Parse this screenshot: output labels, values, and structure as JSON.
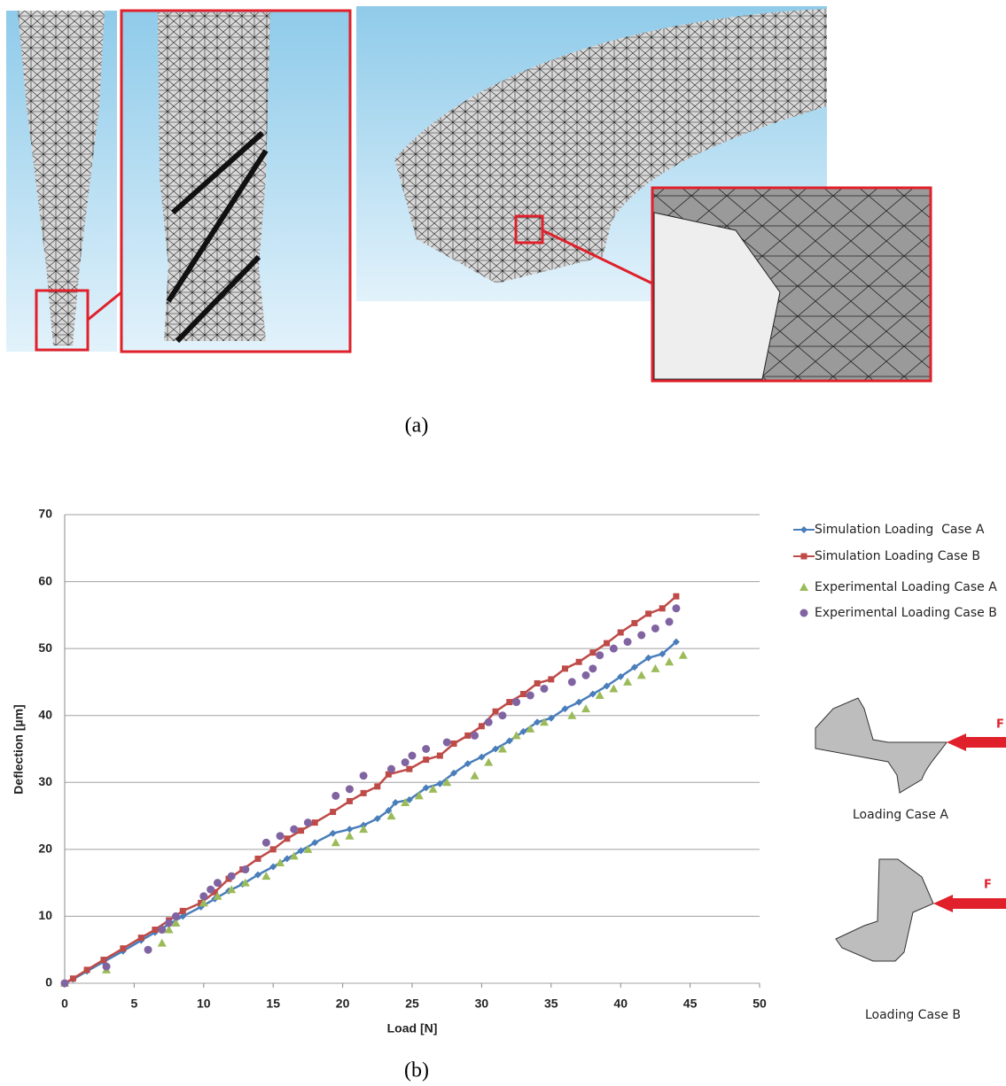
{
  "figure": {
    "caption_a": "(a)",
    "caption_b": "(b)",
    "case_a_label": "Loading Case A",
    "case_b_label": "Loading Case B",
    "force_a": "F",
    "force_b": "F"
  },
  "chart_data": {
    "type": "line",
    "x_label": "Load [N]",
    "y_label": "Deflection [µm]",
    "xlim": [
      0,
      50
    ],
    "xticks": [
      0,
      5,
      10,
      15,
      20,
      25,
      30,
      35,
      40,
      45,
      50
    ],
    "ylim": [
      0,
      70
    ],
    "yticks": [
      0,
      10,
      20,
      30,
      40,
      50,
      60,
      70
    ],
    "grid": true,
    "legend": "right",
    "series": [
      {
        "name": "Simulation Loading  Case A",
        "color": "#4a7ebb",
        "marker": "diamond",
        "line": true,
        "x": [
          0,
          0.6,
          1.6,
          2.8,
          4.2,
          5.5,
          6.5,
          7.5,
          8.5,
          9.8,
          10.8,
          11.8,
          12.8,
          13.9,
          15,
          16,
          17,
          18,
          19.3,
          20.5,
          21.5,
          22.5,
          23.3,
          23.8,
          24.8,
          26,
          27,
          28,
          29,
          30,
          31,
          32,
          33,
          34,
          35,
          36,
          37,
          38,
          39,
          40,
          41,
          42,
          43,
          44
        ],
        "values": [
          0,
          0.6,
          1.8,
          3.2,
          4.8,
          6.4,
          7.6,
          8.8,
          10,
          11.4,
          12.6,
          13.8,
          14.8,
          16.2,
          17.4,
          18.6,
          19.8,
          21,
          22.4,
          23,
          23.6,
          24.6,
          25.8,
          27,
          27.4,
          29.2,
          29.8,
          31.4,
          32.8,
          33.8,
          35,
          36.2,
          37.6,
          39,
          39.6,
          41,
          42,
          43.2,
          44.4,
          45.8,
          47.2,
          48.6,
          49.2,
          51
        ]
      },
      {
        "name": "Simulation Loading Case B",
        "color": "#be4b48",
        "marker": "square",
        "line": true,
        "x": [
          0,
          0.6,
          1.6,
          2.8,
          4.2,
          5.5,
          6.5,
          7.5,
          8.5,
          9.8,
          10.8,
          11.8,
          12.8,
          13.9,
          15,
          16,
          17,
          18,
          19.3,
          20.5,
          21.5,
          22.5,
          23.3,
          24.8,
          26,
          27,
          28,
          29,
          30,
          31,
          32,
          33,
          34,
          35,
          36,
          37,
          38,
          39,
          40,
          41,
          42,
          43,
          44
        ],
        "values": [
          0,
          0.7,
          2,
          3.5,
          5.2,
          6.8,
          8,
          9.4,
          10.8,
          12,
          13.6,
          15.6,
          17,
          18.6,
          20,
          21.6,
          22.8,
          24,
          25.6,
          27.2,
          28.4,
          29.4,
          31.2,
          32,
          33.4,
          34,
          35.8,
          37,
          38.4,
          40.6,
          42,
          43.2,
          44.8,
          45.4,
          47,
          48,
          49.4,
          50.8,
          52.4,
          53.8,
          55.2,
          56,
          57.8
        ]
      },
      {
        "name": "Experimental Loading Case A",
        "color": "#9bbb59",
        "marker": "triangle",
        "line": false,
        "x": [
          0,
          3,
          7,
          7.5,
          8,
          10,
          11,
          12,
          13,
          14.5,
          15.5,
          16.5,
          17.5,
          19.5,
          20.5,
          21.5,
          23.5,
          24.5,
          25.5,
          26.5,
          27.5,
          29.5,
          30.5,
          31.5,
          32.5,
          33.5,
          34.5,
          36.5,
          37.5,
          38.5,
          39.5,
          40.5,
          41.5,
          42.5,
          43.5,
          44.5
        ],
        "values": [
          0,
          2,
          6,
          8,
          9,
          12,
          13,
          14,
          15,
          16,
          18,
          19,
          20,
          21,
          22,
          23,
          25,
          27,
          28,
          29,
          30,
          31,
          33,
          35,
          37,
          38,
          39,
          40,
          41,
          43,
          44,
          45,
          46,
          47,
          48,
          49
        ]
      },
      {
        "name": "Experimental Loading Case B",
        "color": "#8064a2",
        "marker": "circle",
        "line": false,
        "x": [
          0,
          3,
          6,
          7,
          7.5,
          8,
          10,
          10.5,
          11,
          12,
          13,
          14.5,
          15.5,
          16.5,
          17.5,
          19.5,
          20.5,
          21.5,
          23.5,
          24.5,
          25,
          26,
          27.5,
          29.5,
          30.5,
          31.5,
          32.5,
          33.5,
          34.5,
          36.5,
          37.5,
          38,
          38.5,
          39.5,
          40.5,
          41.5,
          42.5,
          43.5,
          44
        ],
        "values": [
          0,
          2.5,
          5,
          8,
          9,
          10,
          13,
          14,
          15,
          16,
          17,
          21,
          22,
          23,
          24,
          28,
          29,
          31,
          32,
          33,
          34,
          35,
          36,
          37,
          39,
          40,
          42,
          43,
          44,
          45,
          46,
          47,
          49,
          50,
          51,
          52,
          53,
          54,
          56
        ]
      }
    ]
  }
}
